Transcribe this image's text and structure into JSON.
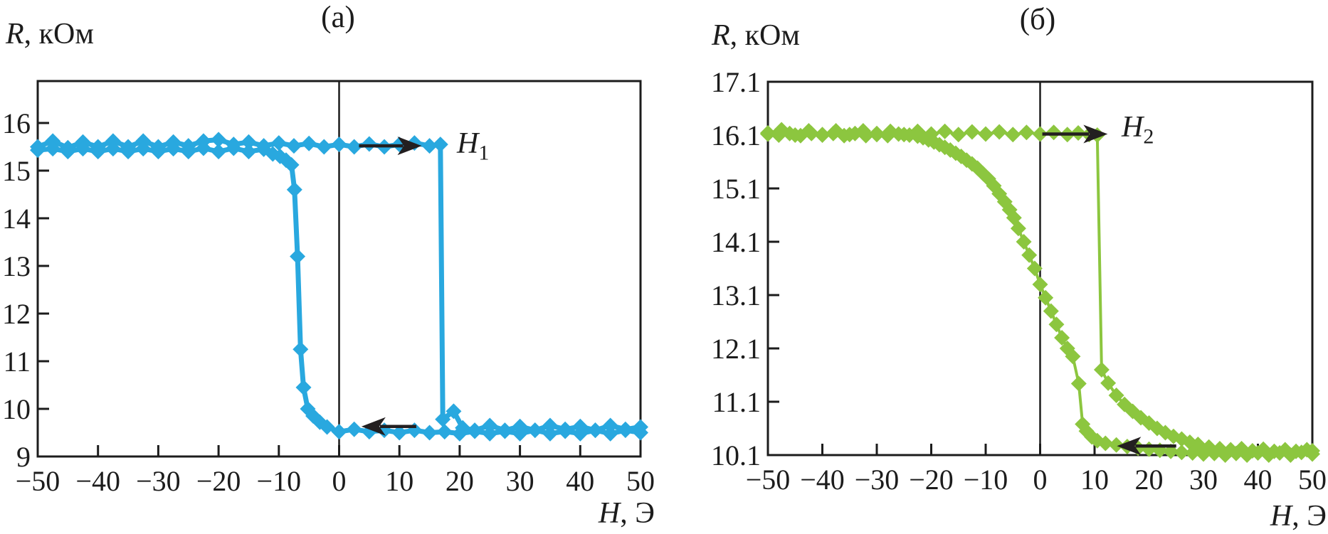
{
  "chart_data": [
    {
      "type": "line",
      "panel_label": "(a)",
      "ylabel_symbol": "R",
      "ylabel_rest": ", кОм",
      "xlabel_symbol": "H",
      "xlabel_rest": ", Э",
      "xlim": [
        -50,
        50
      ],
      "ylim": [
        9,
        16.88
      ],
      "xticks": {
        "values": [
          -50,
          -40,
          -30,
          -20,
          -10,
          0,
          10,
          20,
          30,
          40,
          50
        ],
        "labels": [
          "−50",
          "−40",
          "−30",
          "−20",
          "−10",
          "0",
          "10",
          "20",
          "30",
          "40",
          "50"
        ]
      },
      "yticks": {
        "values": [
          9,
          10,
          11,
          12,
          13,
          14,
          15,
          16
        ],
        "labels": [
          "9",
          "10",
          "11",
          "12",
          "13",
          "14",
          "15",
          "16"
        ]
      },
      "zero_line": true,
      "color": "#29A8DF",
      "marker_size": 11,
      "line_width": 7,
      "series": [
        {
          "name": "field-increasing",
          "values": [
            [
              -50,
              15.5
            ],
            [
              -47.5,
              15.62
            ],
            [
              -45,
              15.48
            ],
            [
              -42.5,
              15.6
            ],
            [
              -40,
              15.5
            ],
            [
              -37.5,
              15.62
            ],
            [
              -35,
              15.5
            ],
            [
              -32.5,
              15.62
            ],
            [
              -30,
              15.5
            ],
            [
              -27.5,
              15.6
            ],
            [
              -25,
              15.52
            ],
            [
              -22.5,
              15.62
            ],
            [
              -20,
              15.65
            ],
            [
              -17.5,
              15.55
            ],
            [
              -15,
              15.6
            ],
            [
              -12.5,
              15.52
            ],
            [
              -10,
              15.58
            ],
            [
              -7.5,
              15.52
            ],
            [
              -5,
              15.57
            ],
            [
              -2.5,
              15.5
            ],
            [
              0,
              15.55
            ],
            [
              2.5,
              15.5
            ],
            [
              5,
              15.56
            ],
            [
              7.5,
              15.5
            ],
            [
              10,
              15.55
            ],
            [
              12.5,
              15.58
            ],
            [
              15,
              15.52
            ],
            [
              16.8,
              15.55
            ],
            [
              17.2,
              9.78
            ],
            [
              19,
              9.95
            ],
            [
              20.5,
              9.6
            ],
            [
              22.5,
              9.55
            ],
            [
              25,
              9.65
            ],
            [
              27.5,
              9.55
            ],
            [
              30,
              9.63
            ],
            [
              32.5,
              9.55
            ],
            [
              35,
              9.65
            ],
            [
              37.5,
              9.57
            ],
            [
              40,
              9.63
            ],
            [
              42.5,
              9.55
            ],
            [
              45,
              9.65
            ],
            [
              47.5,
              9.57
            ],
            [
              50,
              9.62
            ]
          ]
        },
        {
          "name": "field-decreasing",
          "values": [
            [
              50,
              9.5
            ],
            [
              47.5,
              9.55
            ],
            [
              45,
              9.48
            ],
            [
              42.5,
              9.55
            ],
            [
              40,
              9.48
            ],
            [
              37.5,
              9.53
            ],
            [
              35,
              9.48
            ],
            [
              32.5,
              9.55
            ],
            [
              30,
              9.48
            ],
            [
              27.5,
              9.53
            ],
            [
              25,
              9.48
            ],
            [
              22.5,
              9.53
            ],
            [
              20,
              9.48
            ],
            [
              17.5,
              9.52
            ],
            [
              15,
              9.5
            ],
            [
              12.5,
              9.55
            ],
            [
              10,
              9.5
            ],
            [
              7.5,
              9.55
            ],
            [
              5,
              9.52
            ],
            [
              2.5,
              9.57
            ],
            [
              0,
              9.52
            ],
            [
              -2,
              9.62
            ],
            [
              -3.2,
              9.72
            ],
            [
              -4.3,
              9.85
            ],
            [
              -5.2,
              10.0
            ],
            [
              -5.9,
              10.45
            ],
            [
              -6.4,
              11.25
            ],
            [
              -6.9,
              13.2
            ],
            [
              -7.4,
              14.6
            ],
            [
              -7.9,
              15.12
            ],
            [
              -8.8,
              15.22
            ],
            [
              -9.8,
              15.3
            ],
            [
              -11,
              15.35
            ],
            [
              -12.5,
              15.45
            ],
            [
              -15,
              15.4
            ],
            [
              -17.5,
              15.47
            ],
            [
              -20,
              15.4
            ],
            [
              -22.5,
              15.47
            ],
            [
              -25,
              15.4
            ],
            [
              -27.5,
              15.46
            ],
            [
              -30,
              15.4
            ],
            [
              -32.5,
              15.46
            ],
            [
              -35,
              15.4
            ],
            [
              -37.5,
              15.46
            ],
            [
              -40,
              15.4
            ],
            [
              -42.5,
              15.46
            ],
            [
              -45,
              15.4
            ],
            [
              -47.5,
              15.46
            ],
            [
              -50,
              15.43
            ]
          ]
        }
      ],
      "arrows": [
        {
          "name": "sweep-right-arrow",
          "from": [
            3.3,
            15.52
          ],
          "to": [
            13.7,
            15.52
          ]
        },
        {
          "name": "sweep-left-arrow",
          "from": [
            12.8,
            9.63
          ],
          "to": [
            3.7,
            9.63
          ]
        }
      ],
      "annotation": {
        "symbol": "H",
        "sub": "1"
      }
    },
    {
      "type": "line",
      "panel_label": "(б)",
      "ylabel_symbol": "R",
      "ylabel_rest": ", кОм",
      "xlabel_symbol": "H",
      "xlabel_rest": ", Э",
      "xlim": [
        -50,
        50
      ],
      "ylim": [
        10.1,
        17.1
      ],
      "xticks": {
        "values": [
          -50,
          -40,
          -30,
          -20,
          -10,
          0,
          10,
          20,
          30,
          40,
          50
        ],
        "labels": [
          "−50",
          "−40",
          "−30",
          "−20",
          "−10",
          "0",
          "10",
          "20",
          "30",
          "40",
          "50"
        ]
      },
      "yticks": {
        "values": [
          10.1,
          11.1,
          12.1,
          13.1,
          14.1,
          15.1,
          16.1,
          17.1
        ],
        "labels": [
          "10.1",
          "11.1",
          "12.1",
          "13.1",
          "14.1",
          "15.1",
          "16.1",
          "17.1"
        ]
      },
      "zero_line": true,
      "color": "#8CC63F",
      "marker_size": 11,
      "line_width": 4,
      "series": [
        {
          "name": "field-increasing",
          "values": [
            [
              -50,
              16.14
            ],
            [
              -47.5,
              16.2
            ],
            [
              -45,
              16.1
            ],
            [
              -42.5,
              16.18
            ],
            [
              -40,
              16.11
            ],
            [
              -37.5,
              16.18
            ],
            [
              -35,
              16.11
            ],
            [
              -32.5,
              16.18
            ],
            [
              -30,
              16.11
            ],
            [
              -27.5,
              16.17
            ],
            [
              -25,
              16.11
            ],
            [
              -22.5,
              16.17
            ],
            [
              -20,
              16.12
            ],
            [
              -17.5,
              16.17
            ],
            [
              -15,
              16.11
            ],
            [
              -12.5,
              16.16
            ],
            [
              -10,
              16.12
            ],
            [
              -7.5,
              16.16
            ],
            [
              -5,
              16.11
            ],
            [
              -2.5,
              16.15
            ],
            [
              0,
              16.12
            ],
            [
              2.5,
              16.15
            ],
            [
              5,
              16.11
            ],
            [
              7,
              16.14
            ],
            [
              9,
              16.11
            ],
            [
              10.5,
              16.1
            ],
            [
              11.3,
              11.7
            ],
            [
              12.5,
              11.45
            ],
            [
              14,
              11.22
            ],
            [
              15.5,
              11.05
            ],
            [
              17,
              10.92
            ],
            [
              18.5,
              10.8
            ],
            [
              20,
              10.7
            ],
            [
              21.5,
              10.6
            ],
            [
              23,
              10.52
            ],
            [
              24.5,
              10.45
            ],
            [
              26,
              10.4
            ],
            [
              27.5,
              10.34
            ],
            [
              29,
              10.3
            ],
            [
              31,
              10.25
            ],
            [
              33,
              10.22
            ],
            [
              35,
              10.2
            ],
            [
              37,
              10.22
            ],
            [
              39,
              10.18
            ],
            [
              41,
              10.21
            ],
            [
              43,
              10.17
            ],
            [
              45,
              10.2
            ],
            [
              47,
              10.17
            ],
            [
              49,
              10.2
            ],
            [
              50,
              10.18
            ]
          ]
        },
        {
          "name": "field-decreasing",
          "values": [
            [
              50,
              10.12
            ],
            [
              48,
              10.15
            ],
            [
              46,
              10.1
            ],
            [
              44,
              10.14
            ],
            [
              42,
              10.1
            ],
            [
              40,
              10.14
            ],
            [
              38,
              10.1
            ],
            [
              36,
              10.13
            ],
            [
              34,
              10.1
            ],
            [
              32,
              10.13
            ],
            [
              30,
              10.12
            ],
            [
              28,
              10.14
            ],
            [
              26,
              10.15
            ],
            [
              24,
              10.17
            ],
            [
              22,
              10.19
            ],
            [
              20,
              10.21
            ],
            [
              18,
              10.23
            ],
            [
              16,
              10.26
            ],
            [
              14,
              10.29
            ],
            [
              12,
              10.32
            ],
            [
              10.5,
              10.37
            ],
            [
              9.5,
              10.44
            ],
            [
              8.5,
              10.55
            ],
            [
              7.8,
              10.68
            ],
            [
              7.1,
              11.44
            ],
            [
              6,
              11.95
            ],
            [
              5,
              12.1
            ],
            [
              4,
              12.3
            ],
            [
              3,
              12.55
            ],
            [
              2,
              12.8
            ],
            [
              1,
              13.05
            ],
            [
              0,
              13.3
            ],
            [
              -1,
              13.6
            ],
            [
              -2,
              13.85
            ],
            [
              -3,
              14.1
            ],
            [
              -4,
              14.35
            ],
            [
              -4.8,
              14.55
            ],
            [
              -5.6,
              14.7
            ],
            [
              -6.5,
              14.85
            ],
            [
              -7.5,
              15.0
            ],
            [
              -8.5,
              15.15
            ],
            [
              -9.5,
              15.28
            ],
            [
              -10.5,
              15.38
            ],
            [
              -11.5,
              15.48
            ],
            [
              -12.5,
              15.56
            ],
            [
              -13.5,
              15.63
            ],
            [
              -14.5,
              15.7
            ],
            [
              -15.5,
              15.76
            ],
            [
              -16.5,
              15.82
            ],
            [
              -17.5,
              15.87
            ],
            [
              -18.5,
              15.92
            ],
            [
              -19.5,
              15.97
            ],
            [
              -20.5,
              16.01
            ],
            [
              -21.5,
              16.05
            ],
            [
              -22.5,
              16.08
            ],
            [
              -24,
              16.1
            ],
            [
              -26,
              16.12
            ],
            [
              -28,
              16.09
            ],
            [
              -30,
              16.13
            ],
            [
              -32,
              16.09
            ],
            [
              -34,
              16.13
            ],
            [
              -36,
              16.09
            ],
            [
              -38,
              16.13
            ],
            [
              -40,
              16.1
            ],
            [
              -42,
              16.13
            ],
            [
              -44,
              16.09
            ],
            [
              -46,
              16.13
            ],
            [
              -48,
              16.1
            ],
            [
              -50,
              16.12
            ]
          ]
        }
      ],
      "arrows": [
        {
          "name": "sweep-right-arrow",
          "from": [
            0.4,
            16.12
          ],
          "to": [
            12.4,
            16.12
          ]
        },
        {
          "name": "sweep-left-arrow",
          "from": [
            25.0,
            10.27
          ],
          "to": [
            14.1,
            10.27
          ]
        }
      ],
      "annotation": {
        "symbol": "H",
        "sub": "2"
      }
    }
  ],
  "style": {
    "axis_color": "#1c1c1c",
    "arrow_color": "#231f20"
  }
}
